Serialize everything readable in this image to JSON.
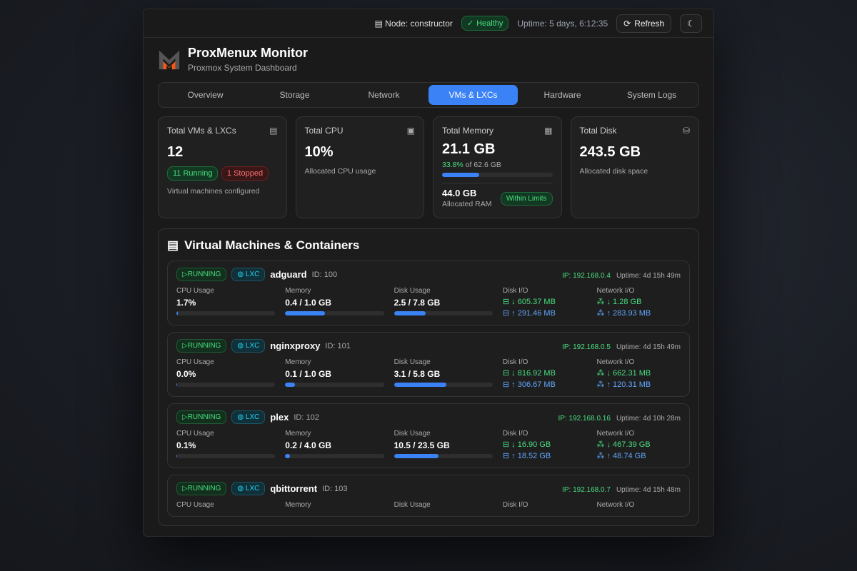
{
  "topbar": {
    "node": "Node: constructor",
    "health": "Healthy",
    "uptime": "Uptime: 5 days, 6:12:35",
    "refresh": "Refresh"
  },
  "header": {
    "title": "ProxMenux Monitor",
    "subtitle": "Proxmox System Dashboard"
  },
  "tabs": [
    {
      "label": "Overview"
    },
    {
      "label": "Storage"
    },
    {
      "label": "Network"
    },
    {
      "label": "VMs & LXCs",
      "active": true
    },
    {
      "label": "Hardware"
    },
    {
      "label": "System Logs"
    }
  ],
  "cards": {
    "vms": {
      "label": "Total VMs & LXCs",
      "value": "12",
      "running": "11 Running",
      "stopped": "1 Stopped",
      "note": "Virtual machines configured"
    },
    "cpu": {
      "label": "Total CPU",
      "value": "10%",
      "note": "Allocated CPU usage"
    },
    "memory": {
      "label": "Total Memory",
      "value": "21.1 GB",
      "pct": "33.8%",
      "of": " of 62.6 GB",
      "fill_percent": 33.8,
      "allocated": "44.0 GB",
      "allocated_label": "Allocated RAM",
      "status": "Within Limits"
    },
    "disk": {
      "label": "Total Disk",
      "value": "243.5 GB",
      "note": "Allocated disk space"
    }
  },
  "vm_section": {
    "title": "Virtual Machines & Containers",
    "labels": {
      "cpu": "CPU Usage",
      "memory": "Memory",
      "disk": "Disk Usage",
      "diskio": "Disk I/O",
      "netio": "Network I/O"
    },
    "rows": [
      {
        "status": "RUNNING",
        "type": "LXC",
        "name": "adguard",
        "id": "ID: 100",
        "ip": "IP: 192.168.0.4",
        "uptime": "Uptime: 4d 15h 49m",
        "cpu": "1.7%",
        "cpu_pct": 1.7,
        "mem": "0.4 / 1.0 GB",
        "mem_pct": 40,
        "disk": "2.5 / 7.8 GB",
        "disk_pct": 32,
        "disk_read": "↓ 605.37 MB",
        "disk_write": "↑ 291.46 MB",
        "net_in": "↓ 1.28 GB",
        "net_out": "↑ 283.93 MB"
      },
      {
        "status": "RUNNING",
        "type": "LXC",
        "name": "nginxproxy",
        "id": "ID: 101",
        "ip": "IP: 192.168.0.5",
        "uptime": "Uptime: 4d 15h 49m",
        "cpu": "0.0%",
        "cpu_pct": 0,
        "mem": "0.1 / 1.0 GB",
        "mem_pct": 10,
        "disk": "3.1 / 5.8 GB",
        "disk_pct": 53,
        "disk_read": "↓ 816.92 MB",
        "disk_write": "↑ 306.67 MB",
        "net_in": "↓ 662.31 MB",
        "net_out": "↑ 120.31 MB"
      },
      {
        "status": "RUNNING",
        "type": "LXC",
        "name": "plex",
        "id": "ID: 102",
        "ip": "IP: 192.168.0.16",
        "uptime": "Uptime: 4d 10h 28m",
        "cpu": "0.1%",
        "cpu_pct": 0.1,
        "mem": "0.2 / 4.0 GB",
        "mem_pct": 5,
        "disk": "10.5 / 23.5 GB",
        "disk_pct": 45,
        "disk_read": "↓ 16.90 GB",
        "disk_write": "↑ 18.52 GB",
        "net_in": "↓ 467.39 GB",
        "net_out": "↑ 48.74 GB"
      },
      {
        "status": "RUNNING",
        "type": "LXC",
        "name": "qbittorrent",
        "id": "ID: 103",
        "ip": "IP: 192.168.0.7",
        "uptime": "Uptime: 4d 15h 48m"
      }
    ]
  }
}
